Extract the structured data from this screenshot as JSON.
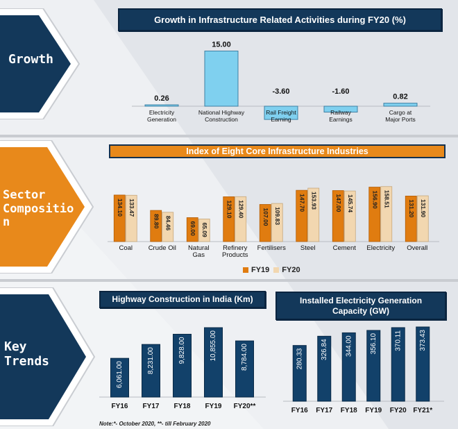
{
  "colors": {
    "navy": "#13385a",
    "orange": "#e8891b",
    "light_blue": "#7fd0ef",
    "fy19": "#e07c10",
    "fy20": "#f2d7b0",
    "bar_navy": "#12416a"
  },
  "sections": {
    "growth": {
      "label": "Growth"
    },
    "sector": {
      "label": "Sector Compositio n",
      "lines": [
        "Sector",
        "Compositio",
        "n"
      ]
    },
    "trends": {
      "label": "Key Trends",
      "lines": [
        "Key",
        "Trends"
      ]
    }
  },
  "legend": {
    "fy19": "FY19",
    "fy20": "FY20"
  },
  "note": "Note:*- October 2020, **- till February 2020",
  "chart_data": [
    {
      "type": "bar",
      "title": "Growth in Infrastructure Related Activities during FY20 (%)",
      "categories": [
        "Electricity Generation",
        "National Highway Construction",
        "Rail Freight Earning",
        "Railway Earnings",
        "Cargo at Major Ports"
      ],
      "category_lines": [
        [
          "Electricity",
          "Generation"
        ],
        [
          "National Highway",
          "Construction"
        ],
        [
          "Rail Freight",
          "Earning"
        ],
        [
          "Railway",
          "Earnings"
        ],
        [
          "Cargo at",
          "Major Ports"
        ]
      ],
      "values": [
        0.26,
        15.0,
        -3.6,
        -1.6,
        0.82
      ],
      "value_labels": [
        "0.26",
        "15.00",
        "-3.60",
        "-1.60",
        "0.82"
      ],
      "ylim": [
        -4,
        15
      ]
    },
    {
      "type": "bar",
      "title": "Index of Eight Core Infrastructure Industries",
      "categories": [
        "Coal",
        "Crude Oil",
        "Natural Gas",
        "Refinery Products",
        "Fertilisers",
        "Steel",
        "Cement",
        "Electricity",
        "Overall"
      ],
      "category_lines": [
        [
          "Coal"
        ],
        [
          "Crude Oil"
        ],
        [
          "Natural",
          "Gas"
        ],
        [
          "Refinery",
          "Products"
        ],
        [
          "Fertilisers"
        ],
        [
          "Steel"
        ],
        [
          "Cement"
        ],
        [
          "Electricity"
        ],
        [
          "Overall"
        ]
      ],
      "series": [
        {
          "name": "FY19",
          "values": [
            134.1,
            89.8,
            69.0,
            129.1,
            107.0,
            147.7,
            147.0,
            156.9,
            131.2
          ],
          "labels": [
            "134.10",
            "89.80",
            "69.00",
            "129.10",
            "107.00",
            "147.70",
            "147.00",
            "156.90",
            "131.20"
          ]
        },
        {
          "name": "FY20",
          "values": [
            133.47,
            84.46,
            65.09,
            129.4,
            109.83,
            153.93,
            145.74,
            158.51,
            131.9
          ],
          "labels": [
            "133.47",
            "84.46",
            "65.09",
            "129.40",
            "109.83",
            "153.93",
            "145.74",
            "158.51",
            "131.90"
          ]
        }
      ],
      "legend_position": "bottom-center",
      "ylim": [
        0,
        160
      ]
    },
    {
      "type": "bar",
      "title": "Highway Construction in India (Km)",
      "categories": [
        "FY16",
        "FY17",
        "FY18",
        "FY19",
        "FY20**"
      ],
      "values": [
        6061,
        8231,
        9828,
        10855,
        8784
      ],
      "value_labels": [
        "6,061.00",
        "8,231.00",
        "9,828.00",
        "10,855.00",
        "8,784.00"
      ],
      "ylim": [
        0,
        10855
      ]
    },
    {
      "type": "bar",
      "title": "Installed Electricity Generation Capacity (GW)",
      "categories": [
        "FY16",
        "FY17",
        "FY18",
        "FY19",
        "FY20",
        "FY21*"
      ],
      "values": [
        280.33,
        326.84,
        344.0,
        356.1,
        370.11,
        373.43
      ],
      "value_labels": [
        "280.33",
        "326.84",
        "344.00",
        "356.10",
        "370.11",
        "373.43"
      ],
      "ylim": [
        0,
        373.43
      ]
    }
  ]
}
